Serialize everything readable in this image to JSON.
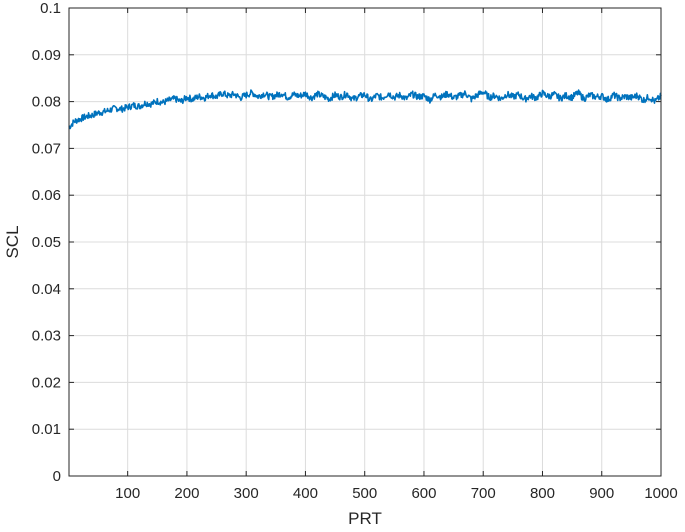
{
  "chart_data": {
    "type": "line",
    "xlabel": "PRT",
    "ylabel": "SCL",
    "xlim": [
      1,
      1000
    ],
    "ylim": [
      0,
      0.1
    ],
    "xticks": [
      100,
      200,
      300,
      400,
      500,
      600,
      700,
      800,
      900,
      1000
    ],
    "yticks": [
      0,
      0.01,
      0.02,
      0.03,
      0.04,
      0.05,
      0.06,
      0.07,
      0.08,
      0.09,
      0.1
    ],
    "xtick_labels": [
      "100",
      "200",
      "300",
      "400",
      "500",
      "600",
      "700",
      "800",
      "900",
      "1000"
    ],
    "ytick_labels": [
      "0",
      "0.01",
      "0.02",
      "0.03",
      "0.04",
      "0.05",
      "0.06",
      "0.07",
      "0.08",
      "0.09",
      "0.1"
    ],
    "grid": true,
    "colors": {
      "series": "#0072bd"
    },
    "series": [
      {
        "x": [
          1,
          10,
          20,
          30,
          40,
          50,
          60,
          70,
          80,
          90,
          100,
          110,
          120,
          130,
          140,
          150,
          160,
          170,
          180,
          190,
          200,
          210,
          220,
          230,
          240,
          250,
          260,
          270,
          280,
          290,
          300,
          310,
          320,
          330,
          340,
          350,
          360,
          370,
          380,
          390,
          400,
          410,
          420,
          430,
          440,
          450,
          460,
          470,
          480,
          490,
          500,
          510,
          520,
          530,
          540,
          550,
          560,
          570,
          580,
          590,
          600,
          610,
          620,
          630,
          640,
          650,
          660,
          670,
          680,
          690,
          700,
          710,
          720,
          730,
          740,
          750,
          760,
          770,
          780,
          790,
          800,
          810,
          820,
          830,
          840,
          850,
          860,
          870,
          880,
          890,
          900,
          910,
          920,
          930,
          940,
          950,
          960,
          970,
          980,
          990,
          1000
        ],
        "y": [
          0.0745,
          0.0758,
          0.0763,
          0.0768,
          0.0771,
          0.0776,
          0.0778,
          0.0782,
          0.0786,
          0.0784,
          0.0788,
          0.0792,
          0.079,
          0.0797,
          0.0795,
          0.0801,
          0.0798,
          0.0803,
          0.0806,
          0.08,
          0.0809,
          0.0805,
          0.0811,
          0.0808,
          0.0815,
          0.081,
          0.0818,
          0.0812,
          0.0816,
          0.0808,
          0.0814,
          0.0819,
          0.0811,
          0.0817,
          0.081,
          0.0813,
          0.0818,
          0.0809,
          0.0815,
          0.0812,
          0.0817,
          0.0808,
          0.0816,
          0.0811,
          0.0806,
          0.0814,
          0.081,
          0.0817,
          0.0805,
          0.0811,
          0.0815,
          0.0803,
          0.0813,
          0.0808,
          0.0818,
          0.0809,
          0.0814,
          0.0806,
          0.0816,
          0.081,
          0.0812,
          0.0804,
          0.0815,
          0.081,
          0.0817,
          0.0808,
          0.0812,
          0.0818,
          0.0805,
          0.0814,
          0.0821,
          0.0809,
          0.0813,
          0.0806,
          0.0816,
          0.081,
          0.0815,
          0.0805,
          0.0812,
          0.0808,
          0.0818,
          0.0811,
          0.0815,
          0.0807,
          0.0813,
          0.0809,
          0.0819,
          0.0806,
          0.0814,
          0.081,
          0.0812,
          0.0804,
          0.0814,
          0.0807,
          0.0811,
          0.0808,
          0.0813,
          0.0803,
          0.081,
          0.08,
          0.0812
        ]
      }
    ]
  }
}
